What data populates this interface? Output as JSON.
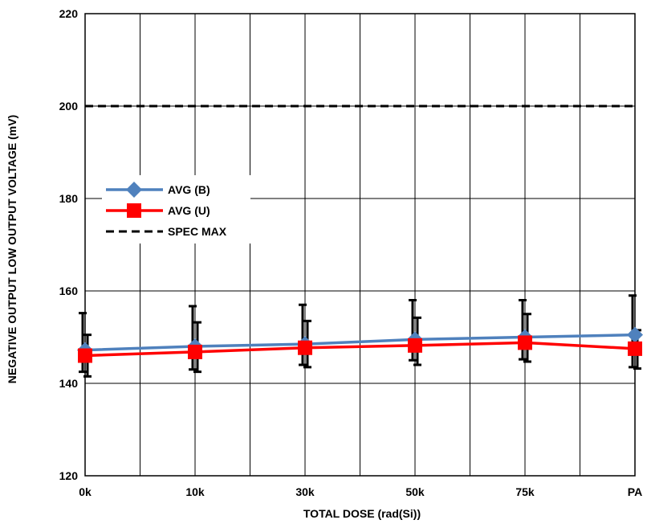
{
  "chart_data": {
    "type": "line",
    "categories": [
      "0k",
      "10k",
      "30k",
      "50k",
      "75k",
      "PA"
    ],
    "xlabel": "TOTAL DOSE (rad(Si))",
    "ylabel": "NEGATIVE OUTPUT LOW OUTPUT VOLTAGE (mV)",
    "ylim": [
      120,
      220
    ],
    "yticks": [
      120,
      140,
      160,
      180,
      200,
      220
    ],
    "grid": true,
    "legend": "upper-left",
    "series": [
      {
        "name": "AVG (B)",
        "color": "#4f81bd",
        "marker": "diamond",
        "values": [
          147.2,
          148.0,
          148.5,
          149.5,
          150.0,
          150.5
        ],
        "err_low": [
          142.5,
          143.0,
          144.0,
          145.0,
          145.2,
          143.5
        ],
        "err_high": [
          155.2,
          156.7,
          157.0,
          158.0,
          158.0,
          159.0
        ]
      },
      {
        "name": "AVG (U)",
        "color": "#ff0000",
        "marker": "square",
        "values": [
          146.0,
          146.8,
          147.7,
          148.2,
          148.8,
          147.5
        ],
        "err_low": [
          141.5,
          142.5,
          143.5,
          144.0,
          144.7,
          143.2
        ],
        "err_high": [
          150.5,
          153.2,
          153.5,
          154.2,
          155.0,
          151.5
        ]
      },
      {
        "name": "SPEC MAX",
        "color": "#000000",
        "marker": "none",
        "dashed": true,
        "values": [
          200,
          200,
          200,
          200,
          200,
          200
        ]
      }
    ]
  }
}
